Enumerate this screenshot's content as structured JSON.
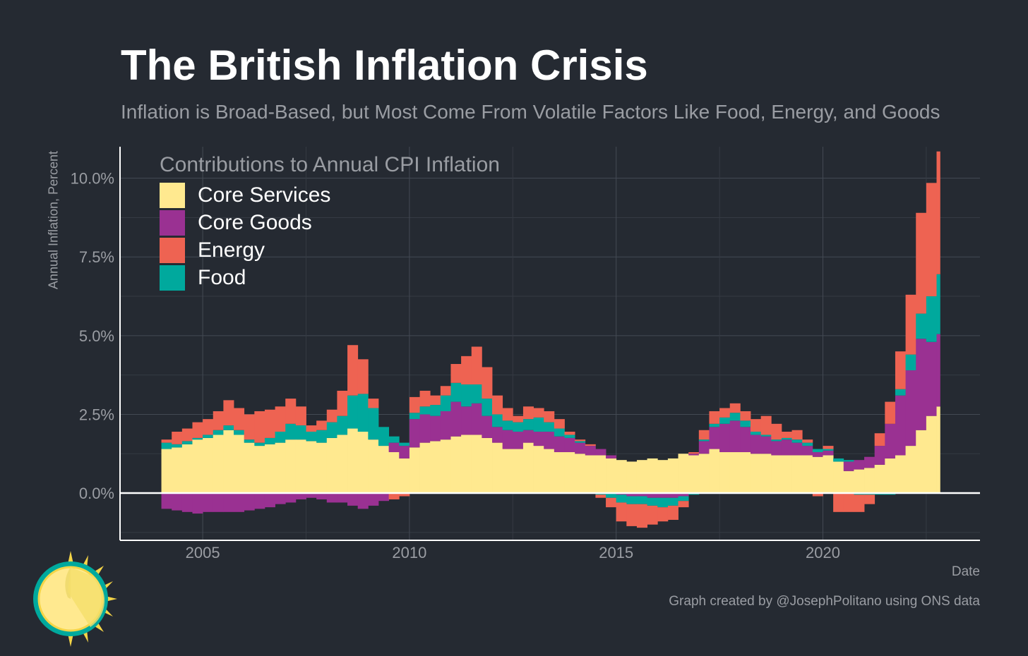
{
  "title": "The British Inflation Crisis",
  "subtitle": "Inflation is Broad-Based, but Most Come From Volatile Factors Like Food, Energy, and Goods",
  "caption": "Graph created by @JosephPolitano using ONS data",
  "chart_data": {
    "type": "bar",
    "stacked": true,
    "title": "The British Inflation Crisis",
    "legend_title": "Contributions to Annual CPI Inflation",
    "legend_position": "top-left",
    "xlabel": "Date",
    "ylabel": "Annual Inflation, Percent",
    "xlim": [
      2003.0,
      2023.8
    ],
    "ylim": [
      -1.5,
      11.0
    ],
    "x_ticks": [
      2005,
      2010,
      2015,
      2020
    ],
    "x_tick_labels": [
      "2005",
      "2010",
      "2015",
      "2020"
    ],
    "y_ticks": [
      0,
      2.5,
      5,
      7.5,
      10
    ],
    "y_tick_labels": [
      "0.0%",
      "2.5%",
      "5.0%",
      "7.5%",
      "10.0%"
    ],
    "grid": true,
    "x_start": 2004.0,
    "x_end": 2022.833,
    "period": "quarterly",
    "series": [
      {
        "name": "Core Services",
        "color": "#FFE98F",
        "values": [
          1.4,
          1.45,
          1.55,
          1.7,
          1.75,
          1.85,
          2.0,
          1.85,
          1.6,
          1.5,
          1.55,
          1.6,
          1.7,
          1.7,
          1.65,
          1.6,
          1.75,
          1.85,
          2.05,
          1.95,
          1.7,
          1.5,
          1.3,
          1.1,
          1.45,
          1.6,
          1.65,
          1.7,
          1.8,
          1.85,
          1.85,
          1.75,
          1.6,
          1.4,
          1.4,
          1.6,
          1.5,
          1.4,
          1.3,
          1.3,
          1.25,
          1.2,
          1.2,
          1.1,
          1.05,
          1.0,
          1.05,
          1.1,
          1.05,
          1.1,
          1.25,
          1.2,
          1.25,
          1.4,
          1.3,
          1.3,
          1.3,
          1.25,
          1.25,
          1.2,
          1.2,
          1.2,
          1.2,
          1.15,
          1.2,
          1.0,
          0.7,
          0.75,
          0.8,
          0.9,
          1.1,
          1.2,
          1.5,
          2.0,
          2.45,
          2.75
        ]
      },
      {
        "name": "Core Goods",
        "color": "#9A3192",
        "values": [
          -0.5,
          -0.55,
          -0.6,
          -0.65,
          -0.6,
          -0.6,
          -0.6,
          -0.6,
          -0.55,
          -0.5,
          -0.45,
          -0.35,
          -0.3,
          -0.2,
          -0.15,
          -0.2,
          -0.3,
          -0.3,
          -0.4,
          -0.5,
          -0.4,
          -0.25,
          0.3,
          0.4,
          0.9,
          0.9,
          0.8,
          0.9,
          1.1,
          0.9,
          1.0,
          0.7,
          0.5,
          0.6,
          0.55,
          0.4,
          0.45,
          0.55,
          0.5,
          0.45,
          0.35,
          0.3,
          0.2,
          0.1,
          -0.05,
          -0.1,
          -0.1,
          -0.15,
          -0.15,
          -0.15,
          -0.1,
          0.05,
          0.4,
          0.7,
          0.9,
          1.0,
          0.8,
          0.6,
          0.55,
          0.45,
          0.5,
          0.4,
          0.3,
          0.15,
          0.15,
          0.0,
          0.3,
          0.3,
          0.35,
          0.6,
          1.1,
          1.9,
          2.4,
          2.9,
          2.35,
          2.3
        ]
      },
      {
        "name": "Food",
        "color": "#00A99D",
        "values": [
          0.2,
          0.1,
          0.1,
          0.05,
          0.1,
          0.15,
          0.15,
          0.15,
          0.1,
          0.1,
          0.2,
          0.35,
          0.5,
          0.45,
          0.3,
          0.4,
          0.5,
          0.6,
          1.05,
          1.2,
          1.0,
          0.6,
          0.2,
          0.1,
          0.2,
          0.25,
          0.35,
          0.5,
          0.6,
          0.7,
          0.6,
          0.55,
          0.4,
          0.3,
          0.3,
          0.35,
          0.45,
          0.3,
          0.25,
          0.1,
          0.05,
          0.0,
          -0.05,
          -0.15,
          -0.25,
          -0.25,
          -0.25,
          -0.25,
          -0.3,
          -0.25,
          -0.15,
          -0.05,
          0.05,
          0.1,
          0.2,
          0.25,
          0.2,
          0.1,
          0.05,
          0.05,
          0.05,
          0.1,
          0.1,
          0.1,
          0.05,
          0.1,
          0.05,
          -0.05,
          -0.05,
          -0.05,
          -0.05,
          0.2,
          0.5,
          0.8,
          1.45,
          1.9
        ]
      },
      {
        "name": "Energy",
        "color": "#EE6352",
        "values": [
          0.1,
          0.4,
          0.4,
          0.5,
          0.5,
          0.6,
          0.8,
          0.7,
          0.8,
          1.0,
          0.9,
          0.8,
          0.8,
          0.6,
          0.2,
          0.3,
          0.4,
          0.8,
          1.6,
          1.1,
          0.3,
          0.0,
          -0.2,
          -0.1,
          0.5,
          0.5,
          0.3,
          0.3,
          0.6,
          0.9,
          1.2,
          1.0,
          0.6,
          0.4,
          0.2,
          0.4,
          0.3,
          0.35,
          0.3,
          0.1,
          0.05,
          0.05,
          -0.1,
          -0.3,
          -0.6,
          -0.7,
          -0.75,
          -0.6,
          -0.45,
          -0.45,
          -0.2,
          0.05,
          0.3,
          0.4,
          0.3,
          0.3,
          0.3,
          0.4,
          0.6,
          0.5,
          0.2,
          0.3,
          0.1,
          -0.1,
          0.1,
          -0.6,
          -0.6,
          -0.55,
          -0.3,
          0.4,
          0.7,
          1.2,
          1.9,
          3.2,
          3.6,
          3.9
        ]
      }
    ]
  }
}
